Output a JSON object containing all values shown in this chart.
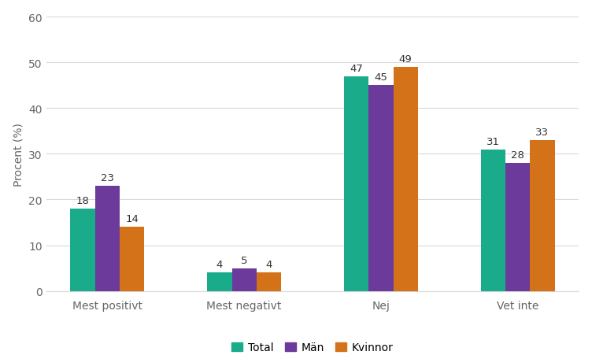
{
  "categories": [
    "Mest positivt",
    "Mest negativt",
    "Nej",
    "Vet inte"
  ],
  "series": {
    "Total": [
      18,
      4,
      47,
      31
    ],
    "Män": [
      23,
      5,
      45,
      28
    ],
    "Kvinnor": [
      14,
      4,
      49,
      33
    ]
  },
  "colors": {
    "Total": "#1aab8a",
    "Män": "#6b3a9b",
    "Kvinnor": "#d4721a"
  },
  "ylabel": "Procent (%)",
  "ylim": [
    0,
    60
  ],
  "yticks": [
    0,
    10,
    20,
    30,
    40,
    50,
    60
  ],
  "legend_labels": [
    "Total",
    "Män",
    "Kvinnor"
  ],
  "bar_width": 0.18,
  "label_fontsize": 9.5,
  "axis_fontsize": 10,
  "legend_fontsize": 10,
  "tick_fontsize": 10
}
